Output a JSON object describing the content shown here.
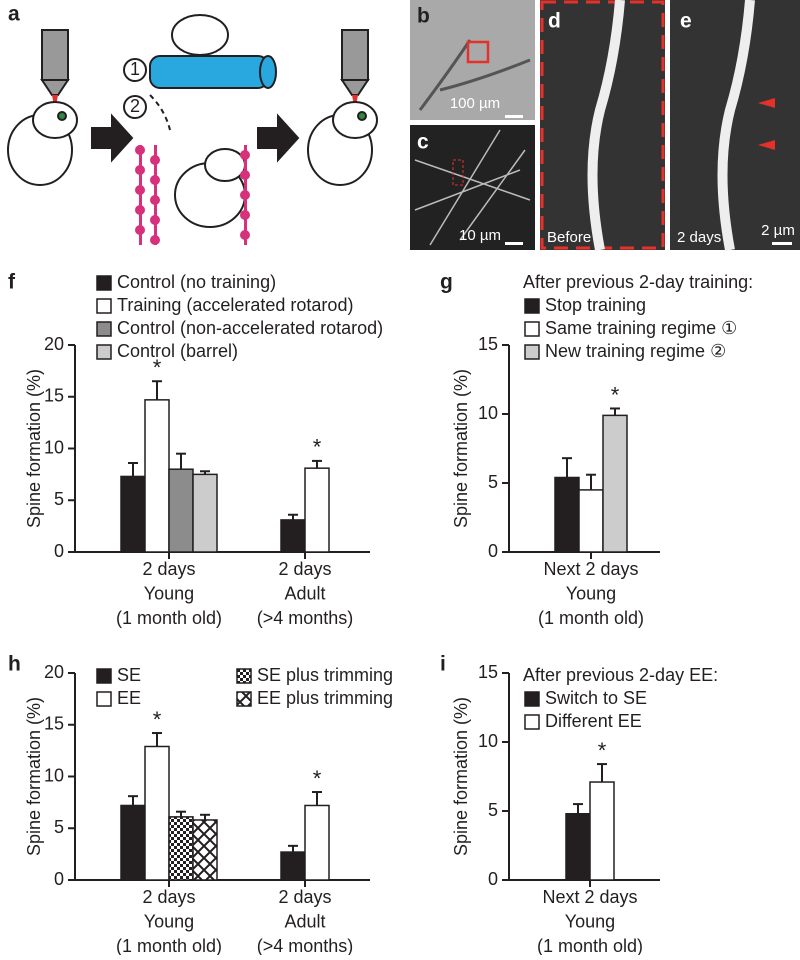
{
  "panel_labels": [
    "a",
    "b",
    "c",
    "d",
    "e",
    "f",
    "g",
    "h",
    "i"
  ],
  "image_texts": {
    "steps": [
      "1",
      "2"
    ],
    "b_scale": "100 µm",
    "c_scale": "10 µm",
    "d_caption": "Before",
    "e_caption": "2 days",
    "e_scale": "2 µm"
  },
  "chart_data": [
    {
      "type": "bar",
      "y_label": "Spine formation (%)",
      "categories": [
        [
          "2 days",
          "Young",
          "(1 month old)"
        ],
        [
          "2 days",
          "Adult",
          "(>4 months)"
        ]
      ],
      "series": [
        {
          "name": "Control (no training)",
          "color": "#231f20",
          "values": [
            7.3,
            3.1
          ],
          "errors": [
            1.3,
            0.5
          ]
        },
        {
          "name": "Training (accelerated rotarod)",
          "color": "#ffffff",
          "values": [
            14.7,
            8.1
          ],
          "errors": [
            1.8,
            0.7
          ]
        },
        {
          "name": "Control (non-accelerated rotarod)",
          "color": "#8c8c8c",
          "values": [
            8.0,
            null
          ],
          "errors": [
            1.5,
            null
          ]
        },
        {
          "name": "Control (barrel)",
          "color": "#cccccc",
          "values": [
            7.5,
            null
          ],
          "errors": [
            0.3,
            null
          ]
        }
      ],
      "annotations": [
        {
          "text": "*",
          "series": 1,
          "category": 0
        },
        {
          "text": "*",
          "series": 1,
          "category": 1
        }
      ],
      "ylim": [
        0,
        20
      ],
      "yticks": [
        0,
        5,
        10,
        15,
        20
      ]
    },
    {
      "type": "bar",
      "y_label": "Spine formation (%)",
      "legend_title": "After previous 2-day training:",
      "categories": [
        [
          "Next 2 days",
          "Young",
          "(1 month old)"
        ]
      ],
      "series": [
        {
          "name": "Stop training",
          "color": "#231f20",
          "values": [
            5.4
          ],
          "errors": [
            1.4
          ]
        },
        {
          "name": "Same training regime ①",
          "color": "#ffffff",
          "values": [
            4.5
          ],
          "errors": [
            1.1
          ]
        },
        {
          "name": "New training regime ②",
          "color": "#cccccc",
          "values": [
            9.9
          ],
          "errors": [
            0.5
          ]
        }
      ],
      "annotations": [
        {
          "text": "*",
          "series": 2,
          "category": 0
        }
      ],
      "ylim": [
        0,
        15
      ],
      "yticks": [
        0,
        5,
        10,
        15
      ]
    },
    {
      "type": "bar",
      "y_label": "Spine formation (%)",
      "legend_columns": 2,
      "categories": [
        [
          "2 days",
          "Young",
          "(1 month old)"
        ],
        [
          "2 days",
          "Adult",
          "(>4 months)"
        ]
      ],
      "series": [
        {
          "name": "SE",
          "color": "#231f20",
          "values": [
            7.2,
            2.7
          ],
          "errors": [
            0.9,
            0.6
          ]
        },
        {
          "name": "EE",
          "color": "#ffffff",
          "values": [
            12.9,
            7.2
          ],
          "errors": [
            1.3,
            1.3
          ]
        },
        {
          "name": "SE plus trimming",
          "color": "#231f20",
          "pattern": "checker-fine",
          "values": [
            6.1,
            null
          ],
          "errors": [
            0.5,
            null
          ]
        },
        {
          "name": "EE plus trimming",
          "color": "#231f20",
          "pattern": "checker-coarse",
          "values": [
            5.8,
            null
          ],
          "errors": [
            0.5,
            null
          ]
        }
      ],
      "annotations": [
        {
          "text": "*",
          "series": 1,
          "category": 0
        },
        {
          "text": "*",
          "series": 1,
          "category": 1
        }
      ],
      "ylim": [
        0,
        20
      ],
      "yticks": [
        0,
        5,
        10,
        15,
        20
      ]
    },
    {
      "type": "bar",
      "y_label": "Spine formation (%)",
      "legend_title": "After previous 2-day EE:",
      "categories": [
        [
          "Next 2 days",
          "Young",
          "(1 month old)"
        ]
      ],
      "series": [
        {
          "name": "Switch to SE",
          "color": "#231f20",
          "values": [
            4.8
          ],
          "errors": [
            0.7
          ]
        },
        {
          "name": "Different EE",
          "color": "#ffffff",
          "values": [
            7.1
          ],
          "errors": [
            1.3
          ]
        }
      ],
      "annotations": [
        {
          "text": "*",
          "series": 1,
          "category": 0
        }
      ],
      "ylim": [
        0,
        15
      ],
      "yticks": [
        0,
        5,
        10,
        15
      ]
    }
  ]
}
